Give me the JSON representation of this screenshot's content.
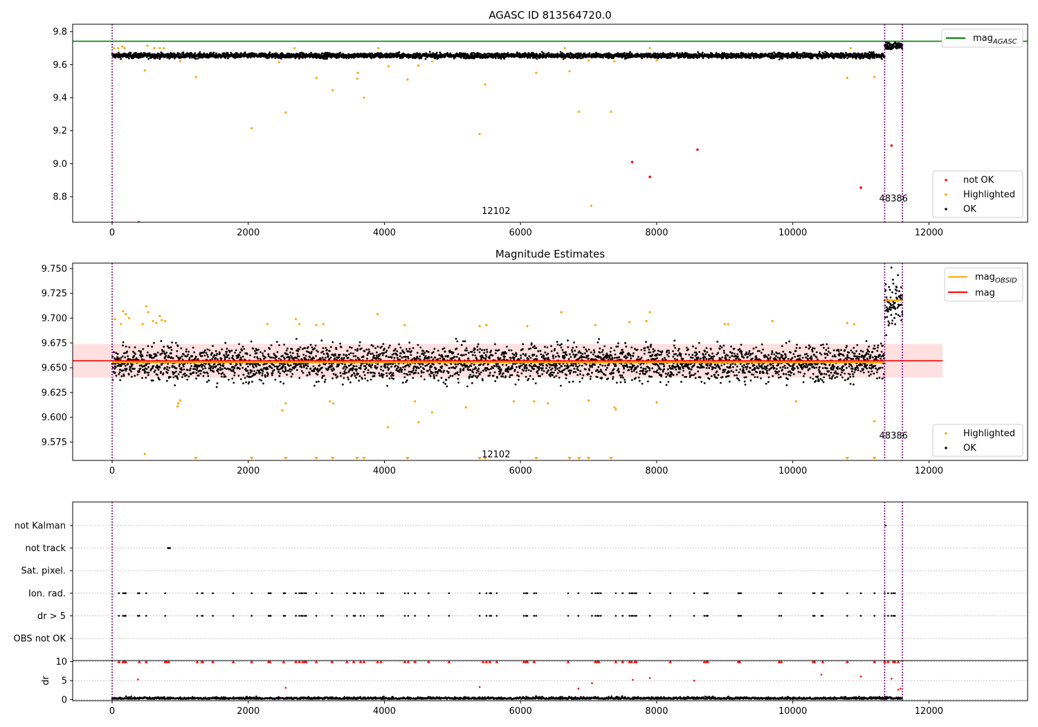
{
  "chart_data": [
    {
      "type": "scatter",
      "title": "AGASC ID 813564720.0",
      "xlim": [
        -580,
        13450
      ],
      "ylim": [
        8.645,
        9.845
      ],
      "x_ticks": [
        "0",
        "2000",
        "4000",
        "6000",
        "8000",
        "10000",
        "12000"
      ],
      "y_ticks": [
        "8.8",
        "9.0",
        "9.2",
        "9.4",
        "9.6",
        "9.8"
      ],
      "obs_boundaries": [
        0,
        11350,
        11610
      ],
      "obs_labels": [
        {
          "x": 5640,
          "y": 8.695,
          "text": "12102"
        },
        {
          "x": 11480,
          "y": 8.77,
          "text": "48386"
        }
      ],
      "legend_upper": {
        "position": "upper-right",
        "entries": [
          {
            "label": "mag",
            "sub": "AGASC",
            "color": "#008000",
            "kind": "line"
          }
        ]
      },
      "legend_lower": {
        "position": "lower-right",
        "entries": [
          {
            "label": "not OK",
            "color": "#ff0000",
            "kind": "dot"
          },
          {
            "label": "Highlighted",
            "color": "#ffa500",
            "kind": "dot"
          },
          {
            "label": "OK",
            "color": "#000000",
            "kind": "dot"
          }
        ]
      },
      "hlines": [
        {
          "y": 9.742,
          "color": "#008000"
        }
      ],
      "ok_band": {
        "segments": [
          {
            "x0": 0,
            "x1": 11350,
            "center": 9.655,
            "half": 0.013
          },
          {
            "x0": 11350,
            "x1": 11610,
            "center": 9.715,
            "half": 0.022
          }
        ]
      },
      "highlighted": [
        [
          30,
          9.7
        ],
        [
          90,
          9.7
        ],
        [
          150,
          9.71
        ],
        [
          180,
          9.7
        ],
        [
          480,
          9.565
        ],
        [
          520,
          9.715
        ],
        [
          620,
          9.7
        ],
        [
          700,
          9.7
        ],
        [
          760,
          9.7
        ],
        [
          1000,
          9.62
        ],
        [
          1230,
          9.525
        ],
        [
          2050,
          9.215
        ],
        [
          2450,
          9.615
        ],
        [
          2550,
          9.31
        ],
        [
          2680,
          9.7
        ],
        [
          3000,
          9.52
        ],
        [
          3240,
          9.445
        ],
        [
          3600,
          9.515
        ],
        [
          3610,
          9.55
        ],
        [
          3700,
          9.4
        ],
        [
          3910,
          9.7
        ],
        [
          4060,
          9.59
        ],
        [
          4340,
          9.51
        ],
        [
          4500,
          9.595
        ],
        [
          4700,
          9.62
        ],
        [
          5400,
          9.18
        ],
        [
          5480,
          9.48
        ],
        [
          6230,
          9.55
        ],
        [
          6650,
          9.7
        ],
        [
          6720,
          9.56
        ],
        [
          6860,
          9.315
        ],
        [
          7000,
          9.625
        ],
        [
          7330,
          9.315
        ],
        [
          7380,
          9.62
        ],
        [
          7900,
          9.7
        ],
        [
          8000,
          9.625
        ],
        [
          10800,
          9.52
        ],
        [
          10850,
          9.7
        ],
        [
          11200,
          9.525
        ]
      ],
      "not_ok": [
        [
          390,
          8.645
        ],
        [
          7640,
          9.01
        ],
        [
          7900,
          8.92
        ],
        [
          8600,
          9.085
        ],
        [
          11000,
          8.855
        ],
        [
          11450,
          9.11
        ]
      ],
      "extra_text_points": [
        [
          7040,
          8.745,
          "#ffa500"
        ]
      ]
    },
    {
      "type": "scatter",
      "title": "Magnitude Estimates",
      "xlim": [
        -580,
        13450
      ],
      "ylim": [
        9.5565,
        9.7555
      ],
      "x_ticks": [
        "0",
        "2000",
        "4000",
        "6000",
        "8000",
        "10000",
        "12000"
      ],
      "y_ticks": [
        "9.575",
        "9.600",
        "9.625",
        "9.650",
        "9.675",
        "9.700",
        "9.725",
        "9.750"
      ],
      "obs_boundaries": [
        0,
        11350,
        11610
      ],
      "obs_labels": [
        {
          "x": 5640,
          "y": 9.5595,
          "text": "12102"
        },
        {
          "x": 11480,
          "y": 9.5785,
          "text": "48386"
        }
      ],
      "legend_upper": {
        "position": "upper-right",
        "entries": [
          {
            "label": "mag",
            "sub": "OBSID",
            "color": "#ffa500",
            "kind": "line"
          },
          {
            "label": "mag",
            "sub": "",
            "color": "#ff0000",
            "kind": "line"
          }
        ]
      },
      "legend_lower": {
        "position": "lower-right",
        "entries": [
          {
            "label": "Highlighted",
            "color": "#ffa500",
            "kind": "dot"
          },
          {
            "label": "OK",
            "color": "#000000",
            "kind": "dot"
          }
        ]
      },
      "mag_mean": 9.657,
      "mag_band": [
        9.64,
        9.674
      ],
      "mag_band_x": [
        -580,
        12200
      ],
      "obsid_mags": [
        {
          "x0": 0,
          "x1": 11350,
          "y": 9.6555
        },
        {
          "x0": 11350,
          "x1": 11610,
          "y": 9.718
        }
      ],
      "highlighted": [
        [
          40,
          9.699
        ],
        [
          130,
          9.694
        ],
        [
          160,
          9.707
        ],
        [
          200,
          9.704
        ],
        [
          250,
          9.7
        ],
        [
          450,
          9.694
        ],
        [
          480,
          9.563
        ],
        [
          500,
          9.712
        ],
        [
          530,
          9.706
        ],
        [
          600,
          9.697
        ],
        [
          650,
          9.695
        ],
        [
          700,
          9.702
        ],
        [
          730,
          9.698
        ],
        [
          780,
          9.697
        ],
        [
          960,
          9.611
        ],
        [
          970,
          9.614
        ],
        [
          1000,
          9.617
        ],
        [
          2280,
          9.694
        ],
        [
          2500,
          9.607
        ],
        [
          2550,
          9.614
        ],
        [
          2700,
          9.699
        ],
        [
          2750,
          9.694
        ],
        [
          3000,
          9.693
        ],
        [
          3100,
          9.694
        ],
        [
          3200,
          9.616
        ],
        [
          3250,
          9.614
        ],
        [
          3900,
          9.704
        ],
        [
          4050,
          9.59
        ],
        [
          4300,
          9.693
        ],
        [
          4450,
          9.616
        ],
        [
          4500,
          9.595
        ],
        [
          4700,
          9.605
        ],
        [
          5200,
          9.61
        ],
        [
          5400,
          9.692
        ],
        [
          5500,
          9.693
        ],
        [
          5900,
          9.616
        ],
        [
          6100,
          9.692
        ],
        [
          6200,
          9.616
        ],
        [
          6400,
          9.614
        ],
        [
          6600,
          9.706
        ],
        [
          7000,
          9.617
        ],
        [
          7100,
          9.693
        ],
        [
          7380,
          9.61
        ],
        [
          7400,
          9.608
        ],
        [
          7600,
          9.696
        ],
        [
          7850,
          9.697
        ],
        [
          7900,
          9.706
        ],
        [
          8000,
          9.615
        ],
        [
          9000,
          9.694
        ],
        [
          9050,
          9.694
        ],
        [
          9700,
          9.697
        ],
        [
          10050,
          9.616
        ],
        [
          10800,
          9.695
        ],
        [
          10900,
          9.694
        ],
        [
          11200,
          9.596
        ]
      ],
      "below_range_markers": [
        1230,
        2050,
        2550,
        3000,
        3240,
        3600,
        3700,
        4340,
        5400,
        5480,
        6230,
        6720,
        6860,
        7000,
        7330,
        10800,
        11200
      ]
    },
    {
      "type": "scatter",
      "title": "",
      "xlim": [
        -580,
        13450
      ],
      "x_ticks": [
        "0",
        "2000",
        "4000",
        "6000",
        "8000",
        "10000",
        "12000"
      ],
      "obs_boundaries": [
        0,
        11350,
        11610
      ],
      "categories": [
        "not Kalman",
        "not track",
        "Sat. pixel.",
        "Ion. rad.",
        "dr > 5",
        "OBS not OK"
      ],
      "flags": {
        "not Kalman": [
          11365
        ],
        "not track": [
          820,
          830,
          840,
          845,
          850
        ],
        "Sat. pixel.": [],
        "Ion. rad.": [
          100,
          160,
          180,
          200,
          380,
          400,
          500,
          780,
          1250,
          1320,
          1330,
          1480,
          1780,
          2050,
          2300,
          2320,
          2330,
          2520,
          2540,
          2700,
          2750,
          2780,
          2800,
          2830,
          2850,
          3000,
          3230,
          3450,
          3550,
          3570,
          3650,
          3700,
          3900,
          3950,
          3980,
          4300,
          4350,
          4450,
          4650,
          4950,
          5400,
          5500,
          5550,
          5570,
          5650,
          6050,
          6080,
          6100,
          6200,
          6230,
          6700,
          6850,
          7050,
          7100,
          7130,
          7150,
          7180,
          7400,
          7500,
          7600,
          7630,
          7650,
          7680,
          7700,
          7900,
          8200,
          8550,
          8700,
          8730,
          8750,
          9200,
          9220,
          9240,
          9800,
          9830,
          10300,
          10320,
          10420,
          10440,
          10800,
          11000,
          11200,
          11350,
          11400,
          11450,
          11480,
          11500
        ],
        "dr > 5": [
          100,
          160,
          180,
          200,
          380,
          400,
          500,
          780,
          1250,
          1320,
          1330,
          1480,
          1780,
          2050,
          2300,
          2320,
          2330,
          2520,
          2540,
          2700,
          2750,
          2780,
          2800,
          2830,
          2850,
          3000,
          3230,
          3450,
          3550,
          3570,
          3650,
          3700,
          3900,
          3950,
          3980,
          4300,
          4350,
          4450,
          4650,
          4950,
          5400,
          5500,
          5550,
          5570,
          5650,
          6050,
          6080,
          6100,
          6200,
          6230,
          6700,
          6850,
          7050,
          7100,
          7130,
          7150,
          7180,
          7400,
          7500,
          7600,
          7630,
          7650,
          7680,
          7700,
          7900,
          8200,
          8550,
          8700,
          8730,
          8750,
          9200,
          9220,
          9240,
          9800,
          9830,
          10300,
          10320,
          10420,
          10440,
          10800,
          11000,
          11200,
          11350,
          11400,
          11450,
          11480,
          11500
        ],
        "OBS not OK": []
      },
      "grid": "dotted-horizontal"
    },
    {
      "type": "scatter",
      "title": "",
      "xlim": [
        -580,
        13450
      ],
      "ylim": [
        -0.3,
        10.3
      ],
      "ylabel": "dr",
      "x_ticks": [
        "0",
        "2000",
        "4000",
        "6000",
        "8000",
        "10000",
        "12000"
      ],
      "y_ticks": [
        "0",
        "5",
        "10"
      ],
      "obs_boundaries": [
        0,
        11350,
        11610
      ],
      "dr_above_5": [
        [
          380,
          5.3
        ],
        [
          2550,
          3.1
        ],
        [
          5400,
          3.3
        ],
        [
          6850,
          2.9
        ],
        [
          7050,
          4.3
        ],
        [
          7650,
          5.2
        ],
        [
          7900,
          5.7
        ],
        [
          8550,
          5.0
        ],
        [
          10420,
          6.6
        ],
        [
          11000,
          6.1
        ],
        [
          11450,
          5.5
        ],
        [
          11550,
          2.6
        ],
        [
          11580,
          2.9
        ]
      ],
      "dr_clipped": [
        100,
        160,
        180,
        200,
        400,
        500,
        780,
        800,
        830,
        1250,
        1320,
        1330,
        1480,
        1780,
        2050,
        2300,
        2320,
        2520,
        2700,
        2750,
        2800,
        2830,
        2850,
        3000,
        3230,
        3450,
        3550,
        3650,
        3700,
        3900,
        3950,
        4300,
        4350,
        4450,
        4650,
        4950,
        5450,
        5500,
        5550,
        5650,
        6050,
        6080,
        6100,
        6200,
        6700,
        7100,
        7130,
        7150,
        7400,
        7500,
        7600,
        7630,
        7680,
        7700,
        8200,
        8700,
        8730,
        8750,
        9200,
        9220,
        9800,
        9830,
        10300,
        10320,
        10440,
        10800,
        11200,
        11350,
        11400,
        11480,
        11500,
        11550
      ]
    }
  ]
}
